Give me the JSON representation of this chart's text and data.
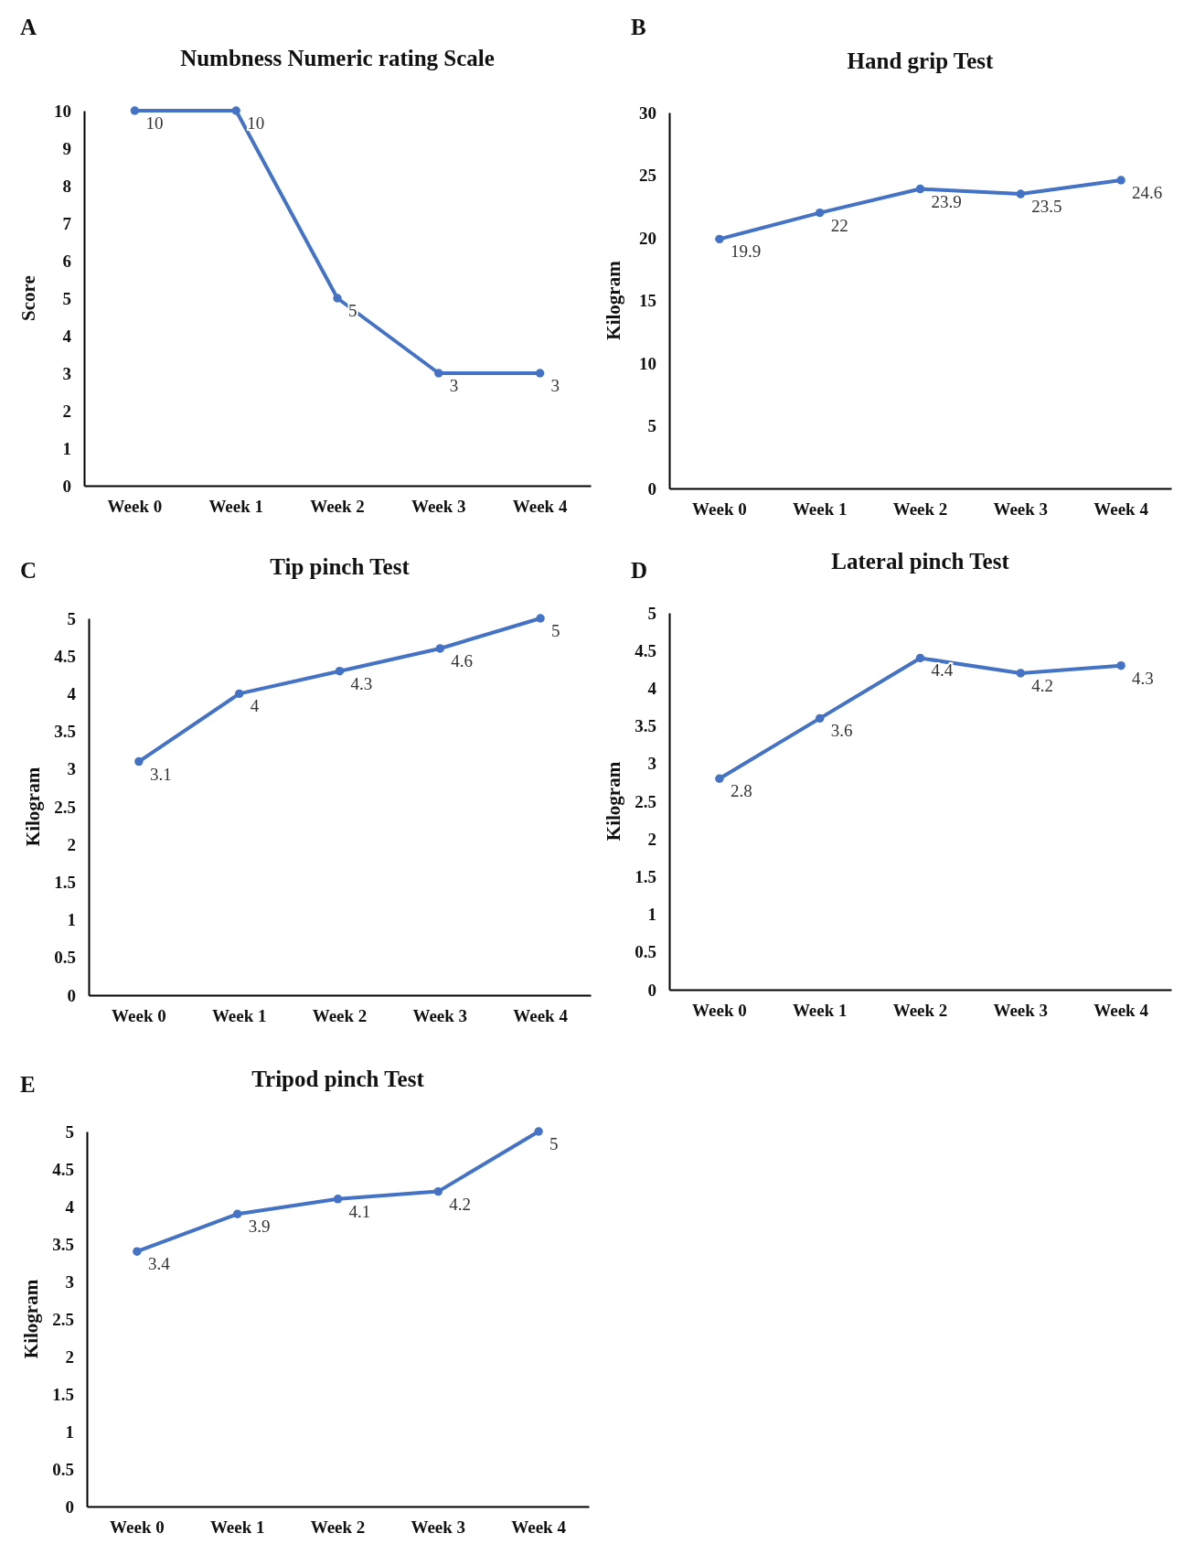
{
  "chart_data": [
    {
      "type": "line",
      "title": "Numbness Numeric rating Scale",
      "ylabel": "Score",
      "annotations": [
        "A"
      ],
      "categories": [
        "Week 0",
        "Week 1",
        "Week 2",
        "Week 3",
        "Week 4"
      ],
      "series": [
        {
          "color": "#4472c4",
          "values": [
            10,
            10,
            5,
            3,
            3
          ]
        }
      ],
      "ylim": [
        0,
        10
      ],
      "yticks": [
        0,
        1,
        2,
        3,
        4,
        5,
        6,
        7,
        8,
        9,
        10
      ],
      "data_labels": true,
      "marker": "circle",
      "grid": false
    },
    {
      "type": "line",
      "title": "Hand grip Test",
      "ylabel": "Kilogram",
      "annotations": [
        "B"
      ],
      "categories": [
        "Week 0",
        "Week 1",
        "Week 2",
        "Week 3",
        "Week 4"
      ],
      "series": [
        {
          "color": "#4472c4",
          "values": [
            19.9,
            22,
            23.9,
            23.5,
            24.6
          ]
        }
      ],
      "ylim": [
        0,
        30
      ],
      "yticks": [
        0,
        5,
        10,
        15,
        20,
        25,
        30
      ],
      "data_labels": true,
      "marker": "circle",
      "grid": false
    },
    {
      "type": "line",
      "title": "Tip pinch Test",
      "ylabel": "Kilogram",
      "annotations": [
        "C"
      ],
      "categories": [
        "Week 0",
        "Week 1",
        "Week 2",
        "Week 3",
        "Week 4"
      ],
      "series": [
        {
          "color": "#4472c4",
          "values": [
            3.1,
            4,
            4.3,
            4.6,
            5
          ]
        }
      ],
      "ylim": [
        0,
        5
      ],
      "yticks": [
        0,
        0.5,
        1,
        1.5,
        2,
        2.5,
        3,
        3.5,
        4,
        4.5,
        5
      ],
      "data_labels": true,
      "marker": "circle",
      "grid": false
    },
    {
      "type": "line",
      "title": "Lateral pinch Test",
      "ylabel": "Kilogram",
      "annotations": [
        "D"
      ],
      "categories": [
        "Week 0",
        "Week 1",
        "Week 2",
        "Week 3",
        "Week 4"
      ],
      "series": [
        {
          "color": "#4472c4",
          "values": [
            2.8,
            3.6,
            4.4,
            4.2,
            4.3
          ]
        }
      ],
      "ylim": [
        0,
        5
      ],
      "yticks": [
        0,
        0.5,
        1,
        1.5,
        2,
        2.5,
        3,
        3.5,
        4,
        4.5,
        5
      ],
      "data_labels": true,
      "marker": "circle",
      "grid": false
    },
    {
      "type": "line",
      "title": "Tripod pinch Test",
      "ylabel": "Kilogram",
      "annotations": [
        "E"
      ],
      "categories": [
        "Week 0",
        "Week 1",
        "Week 2",
        "Week 3",
        "Week 4"
      ],
      "series": [
        {
          "color": "#4472c4",
          "values": [
            3.4,
            3.9,
            4.1,
            4.2,
            5
          ]
        }
      ],
      "ylim": [
        0,
        5
      ],
      "yticks": [
        0,
        0.5,
        1,
        1.5,
        2,
        2.5,
        3,
        3.5,
        4,
        4.5,
        5
      ],
      "data_labels": true,
      "marker": "circle",
      "grid": false
    }
  ]
}
